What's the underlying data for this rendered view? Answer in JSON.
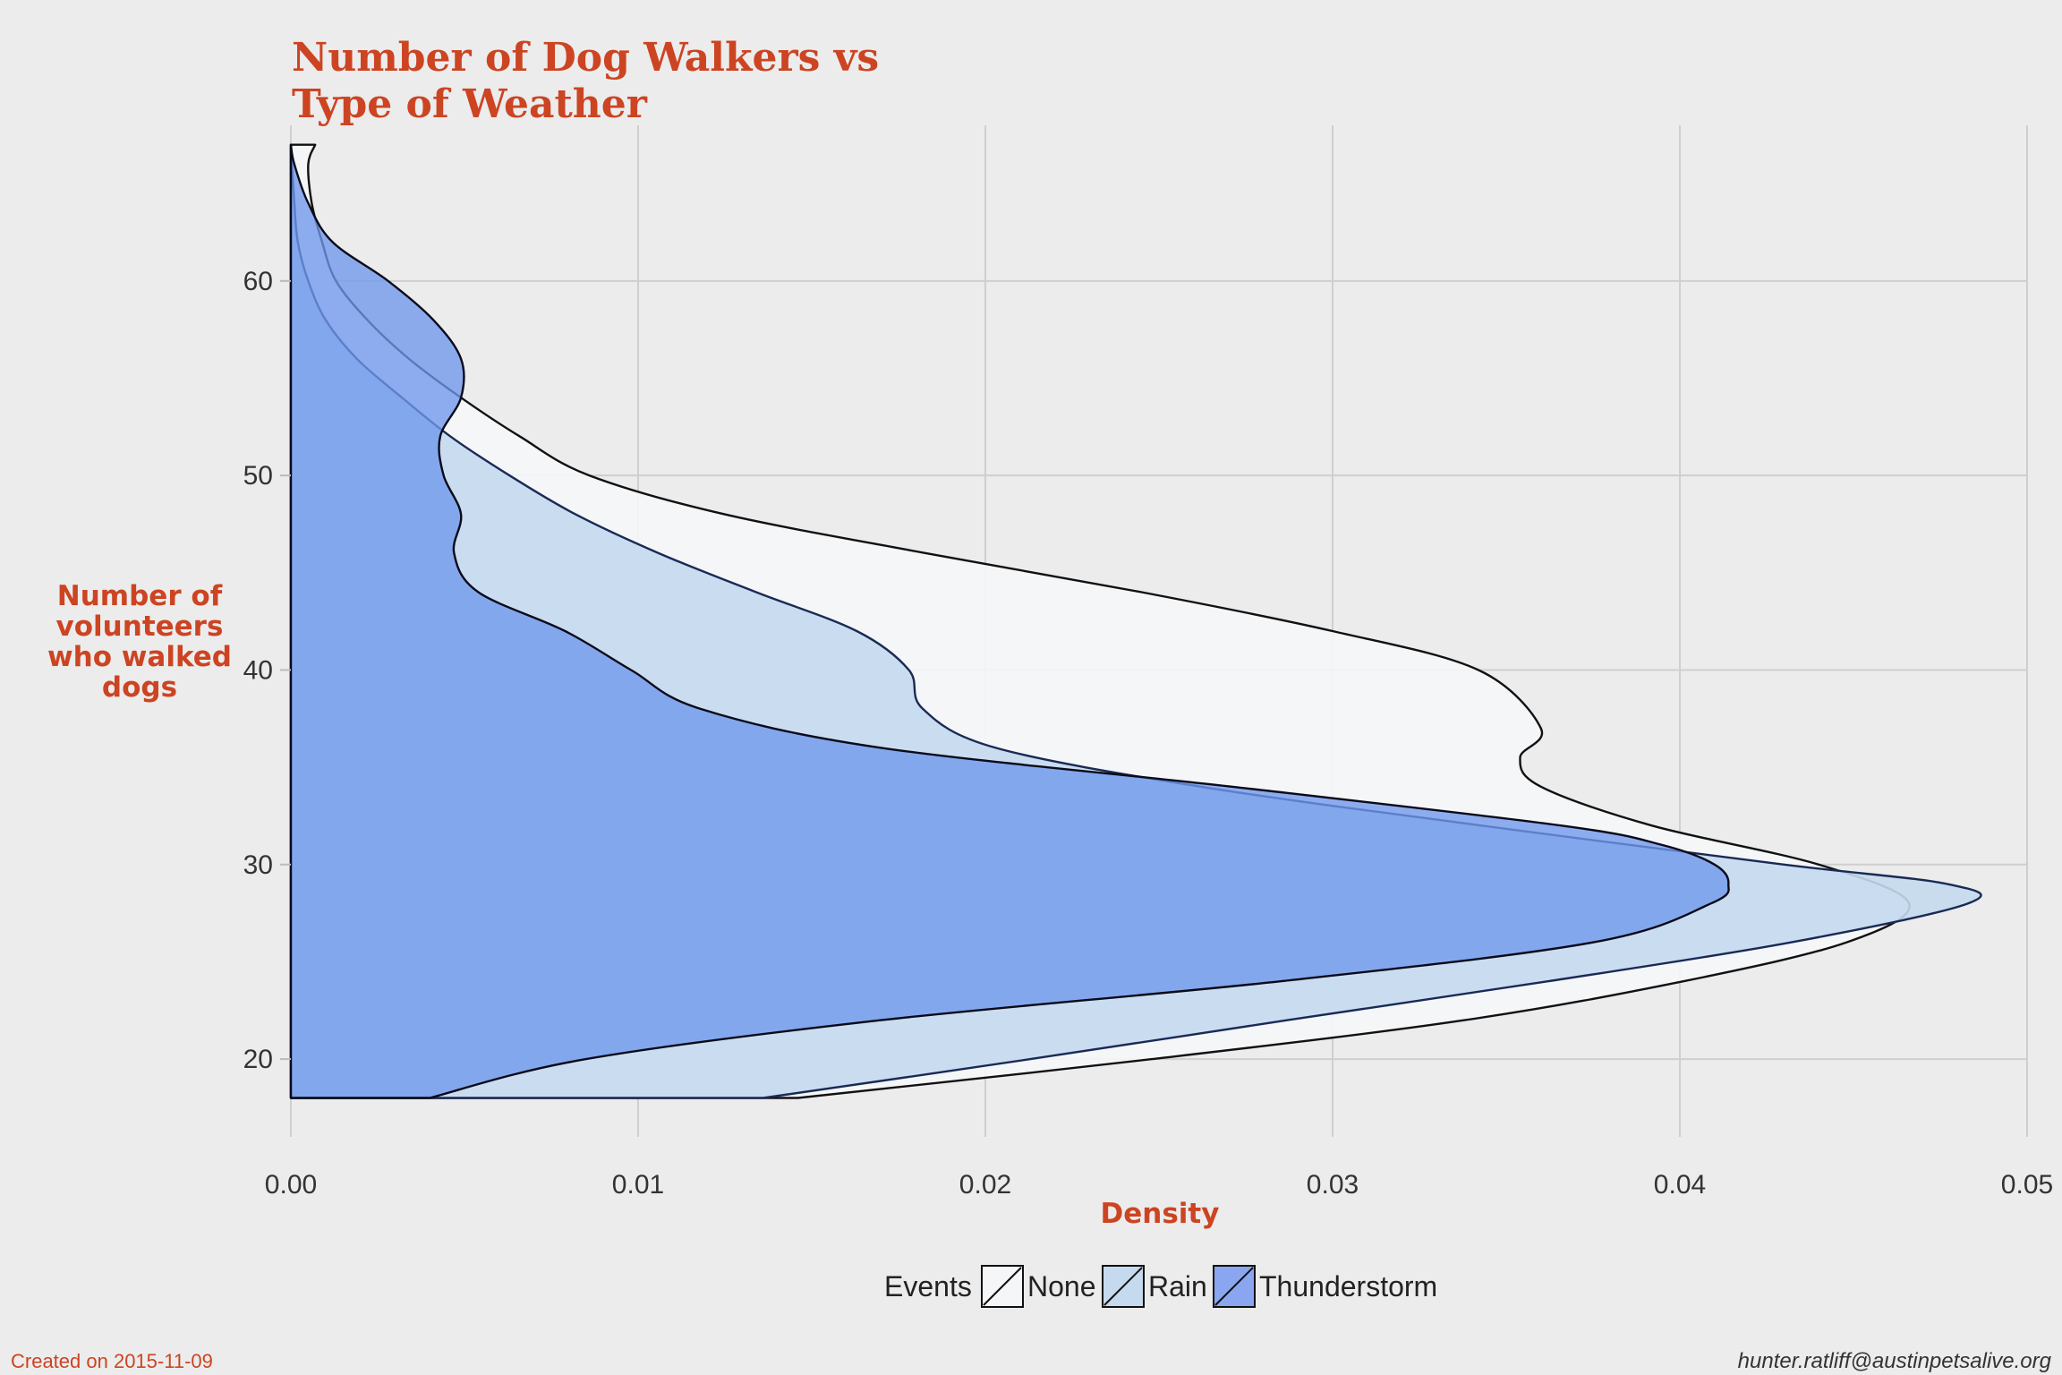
{
  "chart_data": {
    "type": "area",
    "title": "Number of Dog Walkers vs Type of Weather",
    "title_lines": [
      "Number of Dog Walkers vs",
      "Type of Weather"
    ],
    "xlabel": "Density",
    "ylabel_lines": [
      "Number of",
      "volunteers",
      "who walked",
      "dogs"
    ],
    "xlim": [
      0,
      0.05
    ],
    "ylim": [
      16,
      68
    ],
    "x_ticks": [
      0,
      0.01,
      0.02,
      0.03,
      0.04,
      0.05
    ],
    "x_tick_labels": [
      "0.00",
      "0.01",
      "0.02",
      "0.03",
      "0.04",
      "0.05"
    ],
    "y_ticks": [
      20,
      30,
      40,
      50,
      60
    ],
    "y_tick_labels": [
      "20",
      "30",
      "40",
      "50",
      "60"
    ],
    "grid": true,
    "orientation": "horizontal-density",
    "legend": {
      "title": "Events",
      "position": "bottom"
    },
    "series": [
      {
        "name": "None",
        "color": "#f5f6f8",
        "opacity": 0.92,
        "points": [
          [
            18,
            0.0146
          ],
          [
            20,
            0.0248
          ],
          [
            22,
            0.0338
          ],
          [
            24,
            0.0401
          ],
          [
            26,
            0.0448
          ],
          [
            28,
            0.0466
          ],
          [
            30,
            0.044
          ],
          [
            32,
            0.0392
          ],
          [
            34,
            0.036
          ],
          [
            35.5,
            0.0354
          ],
          [
            37,
            0.036
          ],
          [
            40,
            0.0342
          ],
          [
            42,
            0.03
          ],
          [
            44,
            0.0245
          ],
          [
            46,
            0.0183
          ],
          [
            48,
            0.0125
          ],
          [
            50,
            0.0086
          ],
          [
            52,
            0.0066
          ],
          [
            54,
            0.0049
          ],
          [
            56,
            0.0034
          ],
          [
            58,
            0.0022
          ],
          [
            60,
            0.0013
          ],
          [
            62,
            0.0009
          ],
          [
            64,
            0.0006
          ],
          [
            66,
            0.0005
          ],
          [
            67,
            0.0007
          ]
        ]
      },
      {
        "name": "Rain",
        "color": "#c5daee",
        "opacity": 0.9,
        "points": [
          [
            18,
            0.0136
          ],
          [
            20,
            0.0213
          ],
          [
            22,
            0.0287
          ],
          [
            24,
            0.0362
          ],
          [
            26,
            0.0432
          ],
          [
            28,
            0.0483
          ],
          [
            29,
            0.0477
          ],
          [
            30,
            0.043
          ],
          [
            32,
            0.0343
          ],
          [
            34,
            0.0262
          ],
          [
            36,
            0.0203
          ],
          [
            38,
            0.0182
          ],
          [
            40,
            0.0178
          ],
          [
            42,
            0.0163
          ],
          [
            44,
            0.0134
          ],
          [
            46,
            0.0106
          ],
          [
            48,
            0.0082
          ],
          [
            50,
            0.0063
          ],
          [
            52,
            0.0046
          ],
          [
            54,
            0.0032
          ],
          [
            56,
            0.0019
          ],
          [
            58,
            0.001
          ],
          [
            60,
            0.0005
          ],
          [
            62,
            0.0002
          ],
          [
            64,
            0.0001
          ],
          [
            67,
            0.0
          ]
        ]
      },
      {
        "name": "Thunderstorm",
        "color": "#6f97ec",
        "opacity": 0.78,
        "points": [
          [
            18,
            0.004
          ],
          [
            20,
            0.0085
          ],
          [
            22,
            0.017
          ],
          [
            24,
            0.0285
          ],
          [
            26,
            0.0375
          ],
          [
            28,
            0.0409
          ],
          [
            29,
            0.0414
          ],
          [
            30,
            0.041
          ],
          [
            31,
            0.0395
          ],
          [
            32,
            0.0366
          ],
          [
            34,
            0.0271
          ],
          [
            36,
            0.017
          ],
          [
            38,
            0.0118
          ],
          [
            40,
            0.0098
          ],
          [
            42,
            0.0079
          ],
          [
            44,
            0.0054
          ],
          [
            46,
            0.0047
          ],
          [
            48,
            0.0049
          ],
          [
            50,
            0.0044
          ],
          [
            52,
            0.0043
          ],
          [
            54,
            0.0049
          ],
          [
            56,
            0.0049
          ],
          [
            58,
            0.0041
          ],
          [
            60,
            0.0028
          ],
          [
            62,
            0.0012
          ],
          [
            64,
            0.0005
          ],
          [
            66,
            0.0001
          ],
          [
            67,
            0.0
          ]
        ]
      }
    ]
  },
  "captions": {
    "created": "Created on 2015-11-09",
    "author": "hunter.ratliff@austinpetsalive.org"
  }
}
